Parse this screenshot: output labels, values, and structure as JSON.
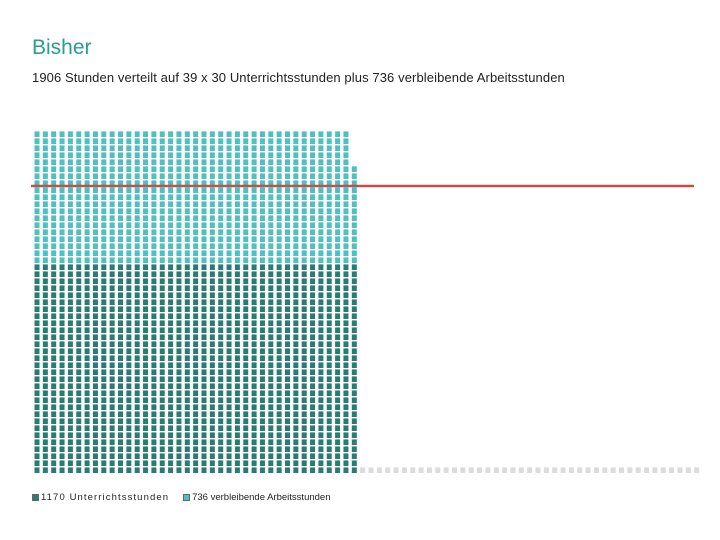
{
  "title": "Bisher",
  "subtitle": "1906 Stunden verteilt auf 39 x 30 Unterrichtsstunden plus 736 verbleibende Arbeitsstunden",
  "colors": {
    "unterricht": "#2a7b73",
    "arbeit": "#4fbfbf",
    "leer": "#dcdcdc",
    "linie": "#c0504d",
    "title": "#2a9d8f"
  },
  "legend": {
    "item1": "1170 Unterrichtsstunden",
    "item2": "736 verbleibende Arbeitsstunden"
  },
  "chart_data": {
    "type": "waffle",
    "columns": 39,
    "rows_per_column": 30,
    "series": [
      {
        "name": "1170 Unterrichtsstunden",
        "value": 1170
      },
      {
        "name": "736 verbleibende Arbeitsstunden",
        "value": 736
      }
    ],
    "reference_line": true
  }
}
